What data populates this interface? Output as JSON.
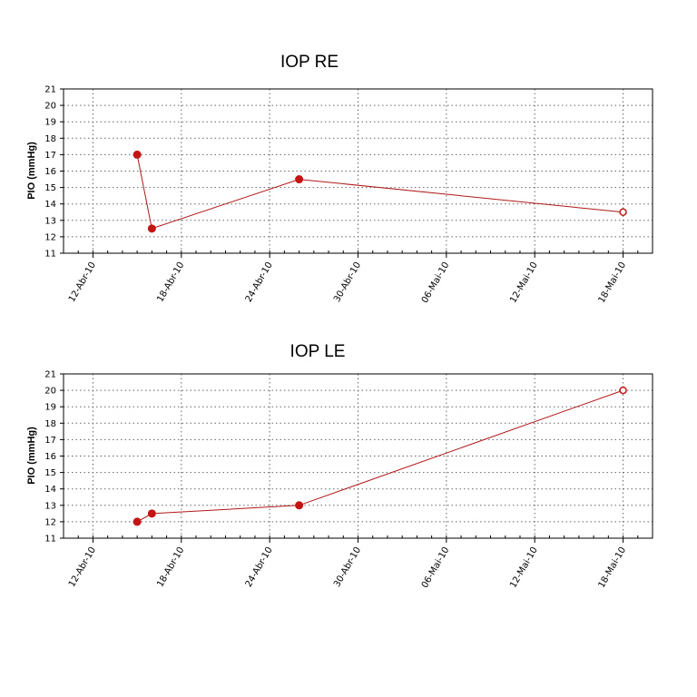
{
  "chart_data": [
    {
      "type": "line",
      "title": "IOP RE",
      "xlabel": "",
      "ylabel": "PIO (mmHg)",
      "ylim": [
        11,
        21
      ],
      "xlim": [
        "2010-04-10",
        "2010-05-20"
      ],
      "yticks": [
        11,
        12,
        13,
        14,
        15,
        16,
        17,
        18,
        19,
        20,
        21
      ],
      "xticks": [
        {
          "date": "2010-04-12",
          "label": "12-Abr-10"
        },
        {
          "date": "2010-04-18",
          "label": "18-Abr-10"
        },
        {
          "date": "2010-04-24",
          "label": "24-Abr-10"
        },
        {
          "date": "2010-04-30",
          "label": "30-Abr-10"
        },
        {
          "date": "2010-05-06",
          "label": "06-Mai-10"
        },
        {
          "date": "2010-05-12",
          "label": "12-Mai-10"
        },
        {
          "date": "2010-05-18",
          "label": "18-Mai-10"
        }
      ],
      "grid": true,
      "series": [
        {
          "color": "#c41414",
          "points": [
            {
              "x": "2010-04-15",
              "y": 17,
              "marker": "filled"
            },
            {
              "x": "2010-04-16",
              "y": 12.5,
              "marker": "filled"
            },
            {
              "x": "2010-04-26",
              "y": 15.5,
              "marker": "filled"
            },
            {
              "x": "2010-05-18",
              "y": 13.5,
              "marker": "open"
            }
          ]
        }
      ]
    },
    {
      "type": "line",
      "title": "IOP LE",
      "xlabel": "",
      "ylabel": "PIO (mmHg)",
      "ylim": [
        11,
        21
      ],
      "xlim": [
        "2010-04-10",
        "2010-05-20"
      ],
      "yticks": [
        11,
        12,
        13,
        14,
        15,
        16,
        17,
        18,
        19,
        20,
        21
      ],
      "xticks": [
        {
          "date": "2010-04-12",
          "label": "12-Abr-10"
        },
        {
          "date": "2010-04-18",
          "label": "18-Abr-10"
        },
        {
          "date": "2010-04-24",
          "label": "24-Abr-10"
        },
        {
          "date": "2010-04-30",
          "label": "30-Abr-10"
        },
        {
          "date": "2010-05-06",
          "label": "06-Mai-10"
        },
        {
          "date": "2010-05-12",
          "label": "12-Mai-10"
        },
        {
          "date": "2010-05-18",
          "label": "18-Mai-10"
        }
      ],
      "grid": true,
      "series": [
        {
          "color": "#c41414",
          "points": [
            {
              "x": "2010-04-15",
              "y": 12,
              "marker": "filled"
            },
            {
              "x": "2010-04-16",
              "y": 12.5,
              "marker": "filled"
            },
            {
              "x": "2010-04-26",
              "y": 13,
              "marker": "filled"
            },
            {
              "x": "2010-05-18",
              "y": 20,
              "marker": "open"
            }
          ]
        }
      ]
    }
  ]
}
